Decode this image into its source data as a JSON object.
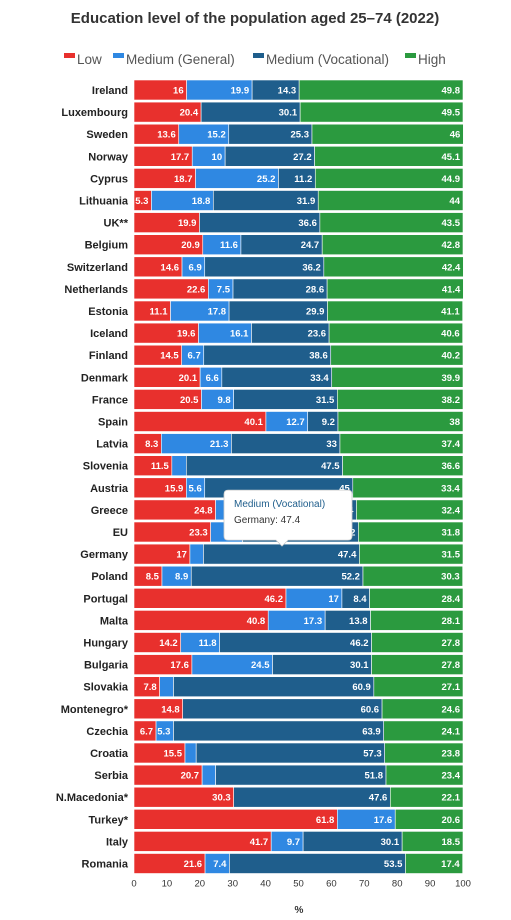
{
  "chart_data": {
    "type": "bar",
    "orientation": "horizontal",
    "stacked": true,
    "title": "Education level of the population aged 25–74 (2022)",
    "xlabel": "%",
    "xlim": [
      0,
      100
    ],
    "xticks": [
      "0",
      "10",
      "20",
      "30",
      "40",
      "50",
      "60",
      "70",
      "80",
      "90",
      "100"
    ],
    "legend_position": "top",
    "categories": [
      "Ireland",
      "Luxembourg",
      "Sweden",
      "Norway",
      "Cyprus",
      "Lithuania",
      "UK**",
      "Belgium",
      "Switzerland",
      "Netherlands",
      "Estonia",
      "Iceland",
      "Finland",
      "Denmark",
      "France",
      "Spain",
      "Latvia",
      "Slovenia",
      "Austria",
      "Greece",
      "EU",
      "Germany",
      "Poland",
      "Portugal",
      "Malta",
      "Hungary",
      "Bulgaria",
      "Slovakia",
      "Montenegro*",
      "Czechia",
      "Croatia",
      "Serbia",
      "N.Macedonia*",
      "Turkey*",
      "Italy",
      "Romania"
    ],
    "series": [
      {
        "name": "Low",
        "color": "#e8302d",
        "values": [
          16,
          20.4,
          13.6,
          17.7,
          18.7,
          5.3,
          19.9,
          20.9,
          14.6,
          22.6,
          11.1,
          19.6,
          14.5,
          20.1,
          20.5,
          40.1,
          8.3,
          11.5,
          15.9,
          24.8,
          23.3,
          17,
          8.5,
          46.2,
          40.8,
          14.2,
          17.6,
          7.8,
          14.8,
          6.7,
          15.5,
          20.7,
          30.3,
          61.8,
          41.7,
          21.6
        ],
        "labels": [
          "16",
          "20.4",
          "13.6",
          "17.7",
          "18.7",
          "5.3",
          "19.9",
          "20.9",
          "14.6",
          "22.6",
          "11.1",
          "19.6",
          "14.5",
          "20.1",
          "20.5",
          "40.1",
          "8.3",
          "11.5",
          "15.9",
          "24.8",
          "23.3",
          "17",
          "8.5",
          "46.2",
          "40.8",
          "14.2",
          "17.6",
          "7.8",
          "14.8",
          "6.7",
          "15.5",
          "20.7",
          "30.3",
          "61.8",
          "41.7",
          "21.6"
        ]
      },
      {
        "name": "Medium (General)",
        "color": "#2f88e2",
        "values": [
          19.9,
          0,
          15.2,
          10,
          25.2,
          18.8,
          0,
          11.6,
          6.9,
          7.5,
          17.8,
          16.1,
          6.7,
          6.6,
          9.8,
          12.7,
          21.3,
          4.4,
          5.6,
          6.4,
          9.7,
          4.1,
          8.9,
          17,
          17.3,
          11.8,
          24.5,
          4.2,
          0,
          5.3,
          3.4,
          4.1,
          0,
          17.6,
          9.7,
          7.4
        ],
        "labels": [
          "19.9",
          "",
          "15.2",
          "10",
          "25.2",
          "18.8",
          "",
          "11.6",
          "6.9",
          "7.5",
          "17.8",
          "16.1",
          "6.7",
          "6.6",
          "9.8",
          "12.7",
          "21.3",
          "",
          "5.6",
          "",
          "",
          "",
          "8.9",
          "17",
          "17.3",
          "11.8",
          "24.5",
          "",
          "",
          "5.3",
          "",
          "",
          "",
          "17.6",
          "9.7",
          "7.4"
        ]
      },
      {
        "name": "Medium (Vocational)",
        "color": "#1f5e8c",
        "values": [
          14.3,
          30.1,
          25.3,
          27.2,
          11.2,
          31.9,
          36.6,
          24.7,
          36.2,
          28.6,
          29.9,
          23.6,
          38.6,
          33.4,
          31.5,
          9.2,
          33,
          47.5,
          45,
          36.4,
          35.2,
          47.4,
          52.2,
          8.4,
          13.8,
          46.2,
          30.1,
          60.9,
          60.6,
          63.9,
          57.3,
          51.8,
          47.6,
          0,
          30.1,
          53.5
        ],
        "labels": [
          "14.3",
          "30.1",
          "25.3",
          "27.2",
          "11.2",
          "31.9",
          "36.6",
          "24.7",
          "36.2",
          "28.6",
          "29.9",
          "23.6",
          "38.6",
          "33.4",
          "31.5",
          "9.2",
          "33",
          "47.5",
          "45",
          "36.4",
          "35.2",
          "47.4",
          "52.2",
          "8.4",
          "13.8",
          "46.2",
          "30.1",
          "60.9",
          "60.6",
          "63.9",
          "57.3",
          "51.8",
          "47.6",
          "",
          "30.1",
          "53.5"
        ]
      },
      {
        "name": "High",
        "color": "#2b9a3f",
        "values": [
          49.8,
          49.5,
          46,
          45.1,
          44.9,
          44,
          43.5,
          42.8,
          42.4,
          41.4,
          41.1,
          40.6,
          40.2,
          39.9,
          38.2,
          38,
          37.4,
          36.6,
          33.4,
          32.4,
          31.8,
          31.5,
          30.3,
          28.4,
          28.1,
          27.8,
          27.8,
          27.1,
          24.6,
          24.1,
          23.8,
          23.4,
          22.1,
          20.6,
          18.5,
          17.4
        ],
        "labels": [
          "49.8",
          "49.5",
          "46",
          "45.1",
          "44.9",
          "44",
          "43.5",
          "42.8",
          "42.4",
          "41.4",
          "41.1",
          "40.6",
          "40.2",
          "39.9",
          "38.2",
          "38",
          "37.4",
          "36.6",
          "33.4",
          "32.4",
          "31.8",
          "31.5",
          "30.3",
          "28.4",
          "28.1",
          "27.8",
          "27.8",
          "27.1",
          "24.6",
          "24.1",
          "23.8",
          "23.4",
          "22.1",
          "20.6",
          "18.5",
          "17.4"
        ]
      }
    ],
    "tooltip": {
      "series": "Medium (Vocational)",
      "category": "Germany",
      "value": "47.4",
      "text_series": "Medium (Vocational)",
      "text_value": "Germany: 47.4"
    }
  }
}
